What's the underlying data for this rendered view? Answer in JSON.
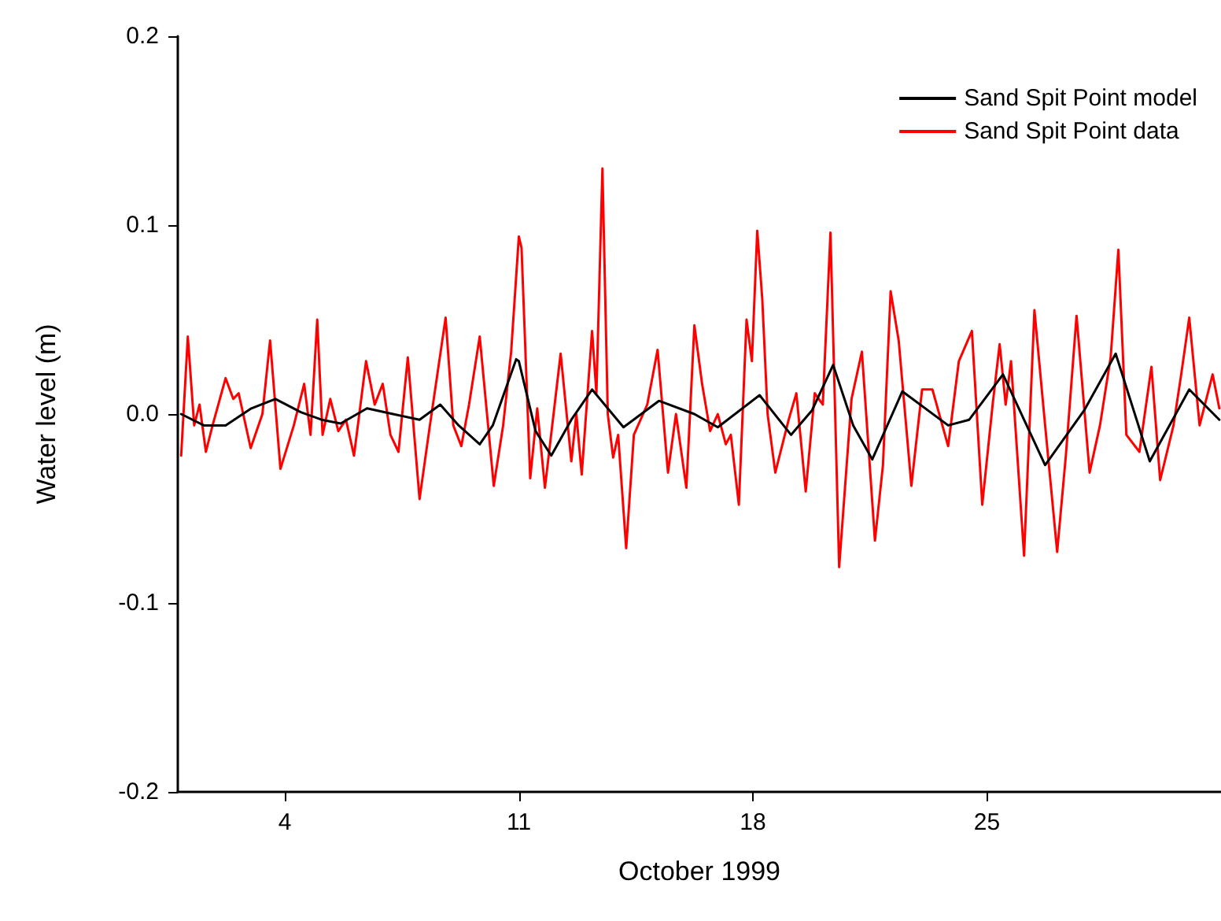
{
  "chart_data": {
    "type": "line",
    "xlabel": "October 1999",
    "ylabel": "Water level (m)",
    "xlim": [
      0.8,
      32
    ],
    "xticks": [
      4,
      11,
      18,
      25
    ],
    "ylim": [
      -0.2,
      0.2
    ],
    "yticks": [
      -0.2,
      -0.1,
      {
        "value": 0,
        "label": "0.0"
      },
      0.1,
      0.2
    ],
    "grid": false,
    "legend": "top right",
    "marker": "none",
    "line_style": "solid",
    "series": [
      {
        "name": "Sand Spit Point model",
        "color": "#000000",
        "x": [
          0.9,
          1.58,
          2.23,
          3.0,
          3.72,
          4.48,
          5.1,
          5.67,
          6.46,
          7.24,
          8.03,
          8.65,
          9.2,
          9.83,
          10.22,
          10.92,
          11.0,
          11.5,
          11.97,
          12.57,
          13.19,
          14.13,
          15.19,
          16.25,
          16.95,
          18.2,
          19.14,
          19.77,
          20.4,
          21.0,
          21.57,
          22.47,
          23.84,
          24.47,
          25.48,
          26.74,
          27.91,
          28.85,
          29.87,
          31.05,
          31.95
        ],
        "values": [
          0,
          -0.006,
          -0.006,
          0.003,
          0.008,
          0.001,
          -0.003,
          -0.005,
          0.003,
          0,
          -0.003,
          0.005,
          -0.006,
          -0.016,
          -0.006,
          0.029,
          0.028,
          -0.009,
          -0.022,
          -0.003,
          0.013,
          -0.007,
          0.007,
          0,
          -0.007,
          0.01,
          -0.011,
          0.002,
          0.026,
          -0.006,
          -0.024,
          0.012,
          -0.006,
          -0.003,
          0.021,
          -0.027,
          0.002,
          0.032,
          -0.025,
          0.013,
          -0.003
        ]
      },
      {
        "name": "Sand Spit Point data",
        "color": "#ff0000",
        "x": [
          0.9,
          1.1,
          1.29,
          1.45,
          1.64,
          1.84,
          2.23,
          2.46,
          2.62,
          2.98,
          3.33,
          3.56,
          3.87,
          4.27,
          4.58,
          4.77,
          4.97,
          5.13,
          5.36,
          5.6,
          5.83,
          6.07,
          6.43,
          6.69,
          6.93,
          7.16,
          7.4,
          7.68,
          8.03,
          8.34,
          8.81,
          9.04,
          9.28,
          9.51,
          9.83,
          10.25,
          10.53,
          10.77,
          11.0,
          11.08,
          11.34,
          11.55,
          11.78,
          12.25,
          12.57,
          12.72,
          12.88,
          13.19,
          13.32,
          13.5,
          13.66,
          13.82,
          13.97,
          14.21,
          14.44,
          14.84,
          15.15,
          15.46,
          15.7,
          16.01,
          16.25,
          16.48,
          16.72,
          16.95,
          17.19,
          17.34,
          17.58,
          17.81,
          17.97,
          18.13,
          18.28,
          18.44,
          18.67,
          19.07,
          19.3,
          19.58,
          19.85,
          20.09,
          20.32,
          20.58,
          20.95,
          21.26,
          21.65,
          21.89,
          22.12,
          22.36,
          22.74,
          23.06,
          23.37,
          23.84,
          24.16,
          24.55,
          24.86,
          25.17,
          25.38,
          25.56,
          25.72,
          26.11,
          26.42,
          26.74,
          27.1,
          27.36,
          27.68,
          28.07,
          28.38,
          28.7,
          28.93,
          29.17,
          29.56,
          29.92,
          30.18,
          30.58,
          30.81,
          31.05,
          31.36,
          31.75,
          31.95
        ],
        "values": [
          -0.022,
          0.041,
          -0.006,
          0.005,
          -0.02,
          -0.006,
          0.019,
          0.008,
          0.011,
          -0.018,
          0,
          0.039,
          -0.029,
          -0.006,
          0.016,
          -0.011,
          0.05,
          -0.011,
          0.008,
          -0.009,
          -0.003,
          -0.022,
          0.028,
          0.005,
          0.016,
          -0.011,
          -0.02,
          0.03,
          -0.045,
          -0.006,
          0.051,
          -0.006,
          -0.017,
          0.005,
          0.041,
          -0.038,
          -0.006,
          0.033,
          0.094,
          0.088,
          -0.034,
          0.003,
          -0.039,
          0.032,
          -0.025,
          0,
          -0.032,
          0.044,
          0.011,
          0.13,
          0,
          -0.023,
          -0.011,
          -0.071,
          -0.011,
          0.005,
          0.034,
          -0.031,
          0,
          -0.039,
          0.047,
          0.016,
          -0.009,
          0,
          -0.016,
          -0.011,
          -0.048,
          0.05,
          0.028,
          0.097,
          0.061,
          0,
          -0.031,
          -0.003,
          0.011,
          -0.041,
          0.011,
          0.005,
          0.096,
          -0.081,
          0.008,
          0.033,
          -0.067,
          -0.027,
          0.065,
          0.039,
          -0.038,
          0.013,
          0.013,
          -0.017,
          0.028,
          0.044,
          -0.048,
          0.005,
          0.037,
          0.005,
          0.028,
          -0.075,
          0.055,
          -0.006,
          -0.073,
          -0.022,
          0.052,
          -0.031,
          -0.006,
          0.03,
          0.087,
          -0.011,
          -0.02,
          0.025,
          -0.035,
          -0.006,
          0.021,
          0.051,
          -0.006,
          0.021,
          0.003
        ]
      }
    ]
  }
}
